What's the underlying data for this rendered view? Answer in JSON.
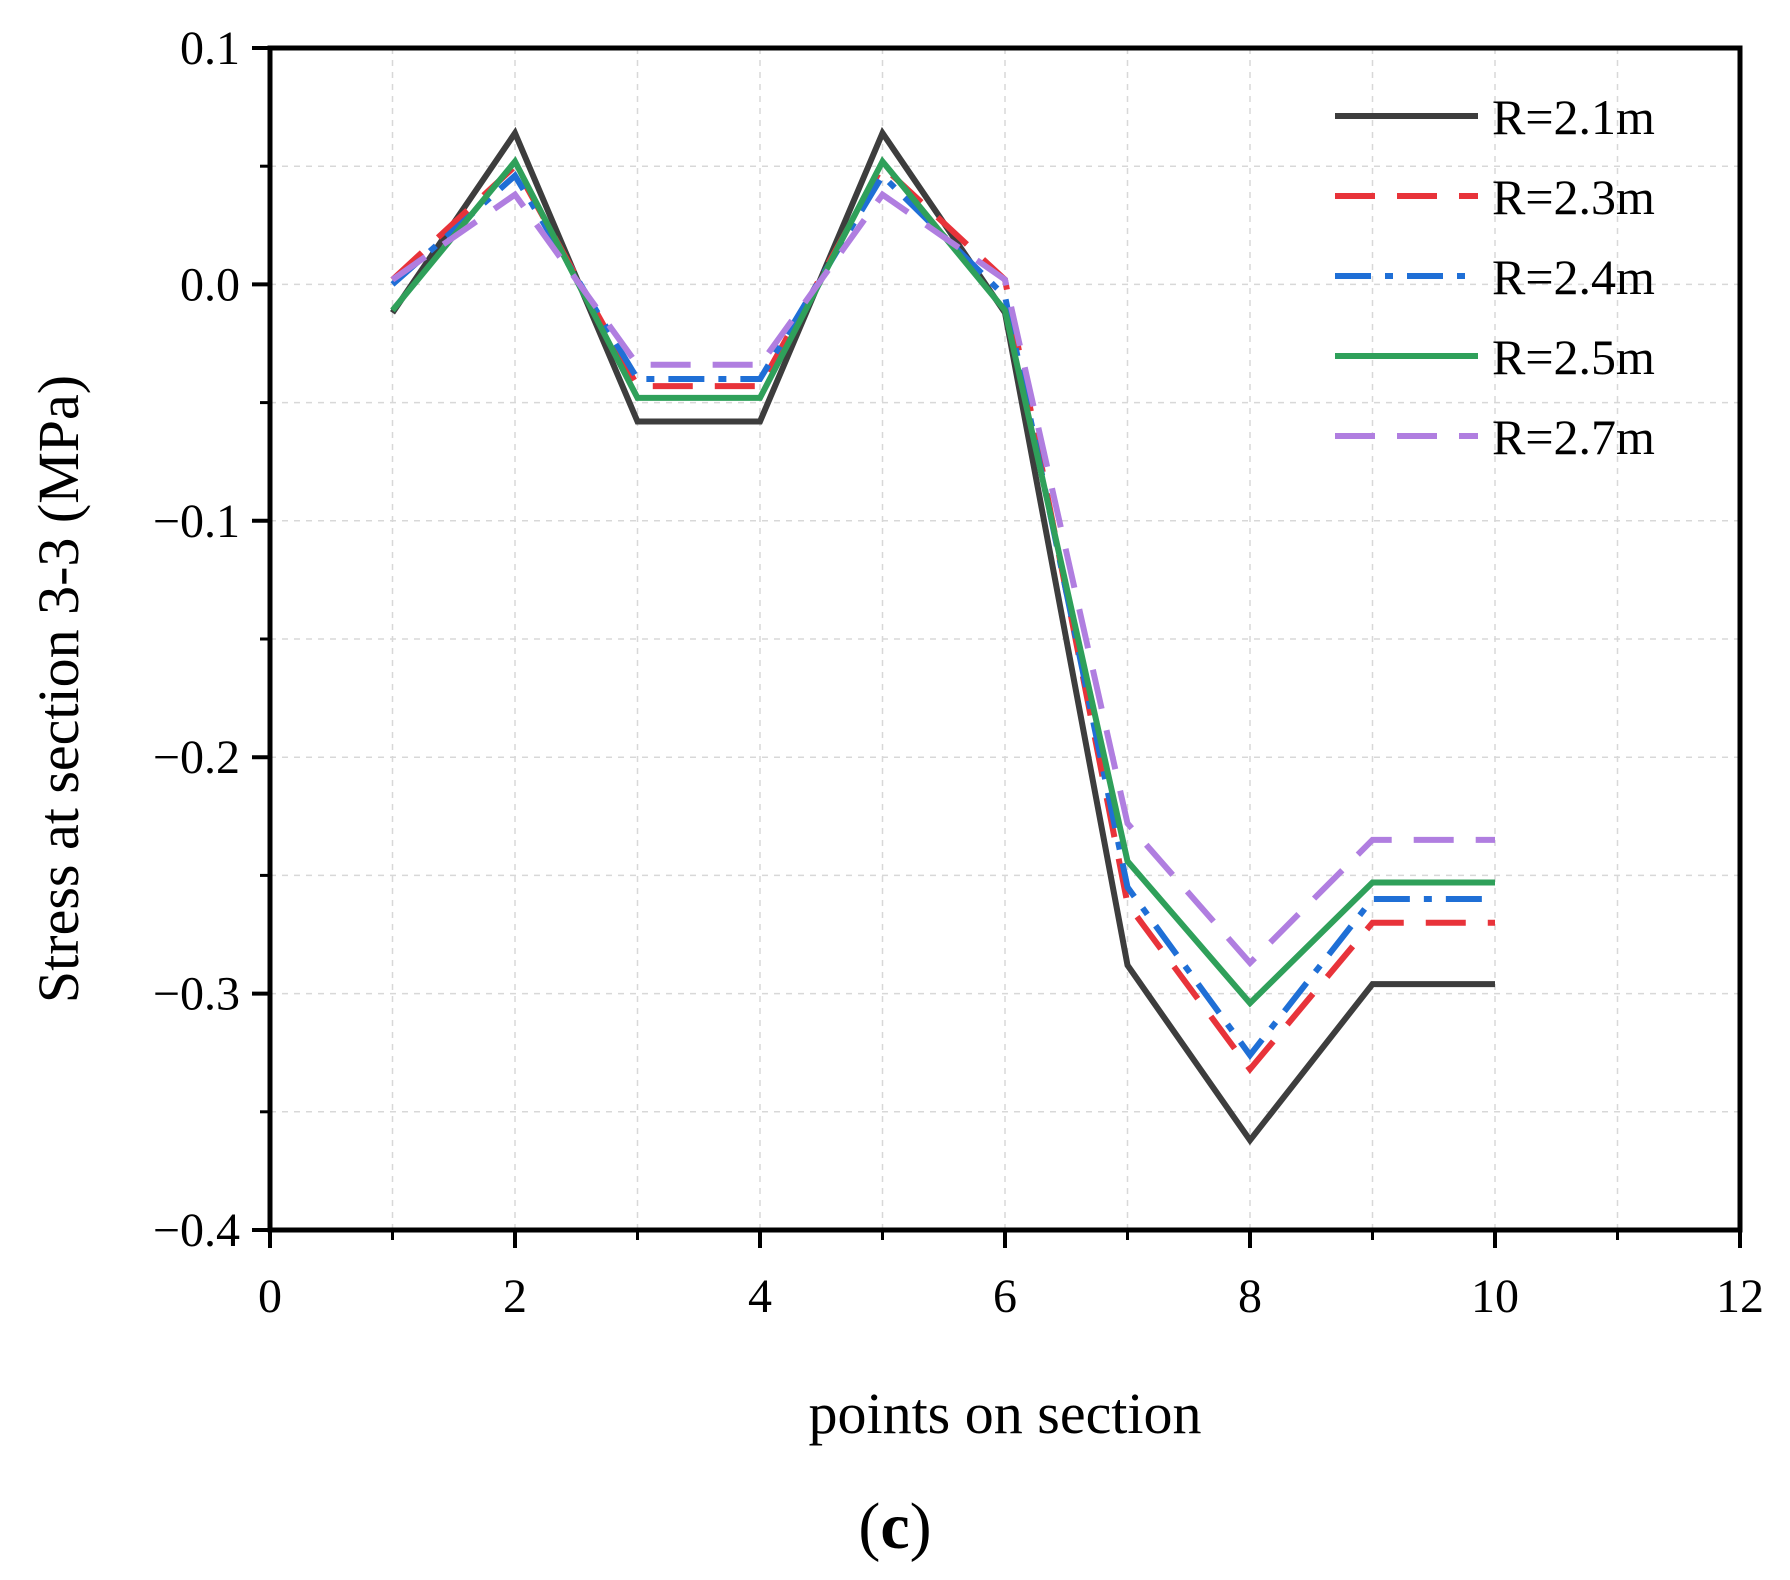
{
  "chart_data": {
    "type": "line",
    "title": "",
    "xlabel": "points on section",
    "ylabel": "Stress  at section 3-3 (MPa)",
    "xlim": [
      0,
      12
    ],
    "ylim": [
      -0.4,
      0.1
    ],
    "xticks": [
      0,
      2,
      4,
      6,
      8,
      10,
      12
    ],
    "yticks": [
      0.1,
      0.0,
      -0.1,
      -0.2,
      -0.3,
      -0.4
    ],
    "xtick_labels": [
      "0",
      "2",
      "4",
      "6",
      "8",
      "10",
      "12"
    ],
    "ytick_labels": [
      "0.1",
      "0.0",
      "−0.1",
      "−0.2",
      "−0.3",
      "−0.4"
    ],
    "grid": true,
    "legend_position": "top-right",
    "panel_label": "(c)",
    "x": [
      1,
      2,
      3,
      4,
      5,
      6,
      7,
      8,
      9,
      10
    ],
    "series": [
      {
        "name": "R=2.1m",
        "color": "#3d3d3d",
        "style": "solid",
        "values": [
          -0.012,
          0.064,
          -0.058,
          -0.058,
          0.064,
          -0.012,
          -0.288,
          -0.362,
          -0.296,
          -0.296
        ]
      },
      {
        "name": "R=2.3m",
        "color": "#e8333a",
        "style": "dash",
        "values": [
          0.002,
          0.05,
          -0.043,
          -0.043,
          0.05,
          0.002,
          -0.262,
          -0.332,
          -0.27,
          -0.27
        ]
      },
      {
        "name": "R=2.4m",
        "color": "#1f6fd6",
        "style": "dashdot",
        "values": [
          0.0,
          0.046,
          -0.04,
          -0.04,
          0.046,
          -0.005,
          -0.255,
          -0.326,
          -0.26,
          -0.26
        ]
      },
      {
        "name": "R=2.5m",
        "color": "#2fa05a",
        "style": "solid",
        "values": [
          -0.011,
          0.052,
          -0.048,
          -0.048,
          0.052,
          -0.011,
          -0.244,
          -0.304,
          -0.253,
          -0.253
        ]
      },
      {
        "name": "R=2.7m",
        "color": "#b07ee0",
        "style": "dash",
        "values": [
          0.002,
          0.038,
          -0.034,
          -0.034,
          0.038,
          0.002,
          -0.228,
          -0.287,
          -0.235,
          -0.235
        ]
      }
    ]
  }
}
